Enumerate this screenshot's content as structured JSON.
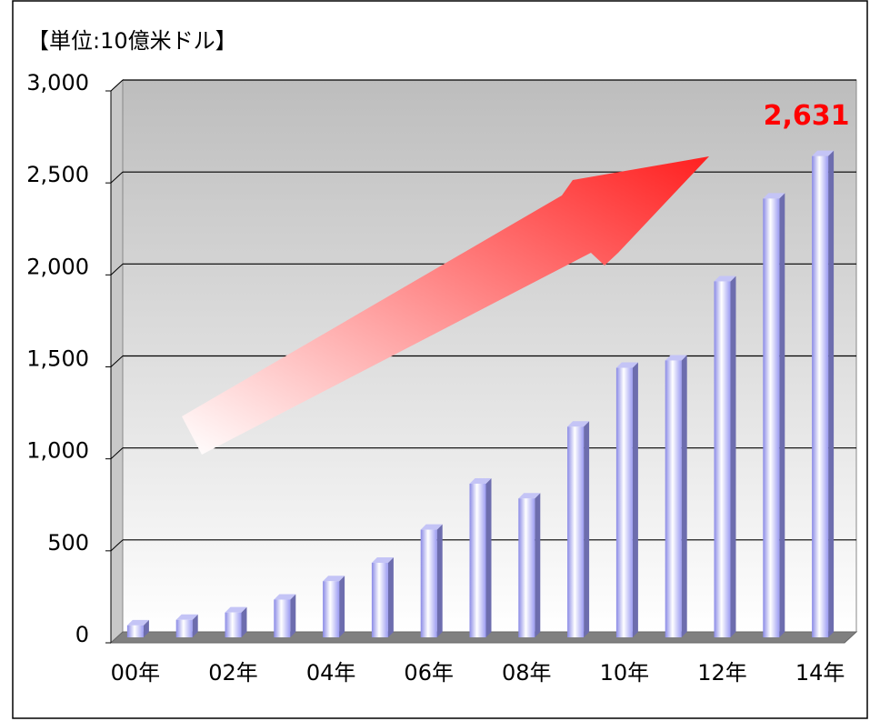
{
  "chart_data": {
    "type": "bar",
    "y_label": "【単位:10億米ドル】",
    "categories": [
      "00年",
      null,
      "02年",
      null,
      "04年",
      null,
      "06年",
      null,
      "08年",
      null,
      "10年",
      null,
      "12年",
      null,
      "14年"
    ],
    "values": [
      80,
      110,
      150,
      220,
      320,
      420,
      600,
      850,
      770,
      1160,
      1480,
      1520,
      1950,
      2400,
      2631
    ],
    "value_labels": [
      null,
      null,
      null,
      null,
      null,
      null,
      null,
      null,
      null,
      null,
      null,
      null,
      null,
      null,
      "2,631"
    ],
    "color": "#9b9bf0",
    "ylim": [
      0,
      3000
    ],
    "yticks": [
      0,
      500,
      {
        "value": 1000,
        "label": "1,000"
      },
      {
        "value": 1500,
        "label": "1,500"
      },
      {
        "value": 2000,
        "label": "2,000"
      },
      {
        "value": 2500,
        "label": "2,500"
      },
      {
        "value": 3000,
        "label": "3,000"
      }
    ],
    "grid": true
  }
}
